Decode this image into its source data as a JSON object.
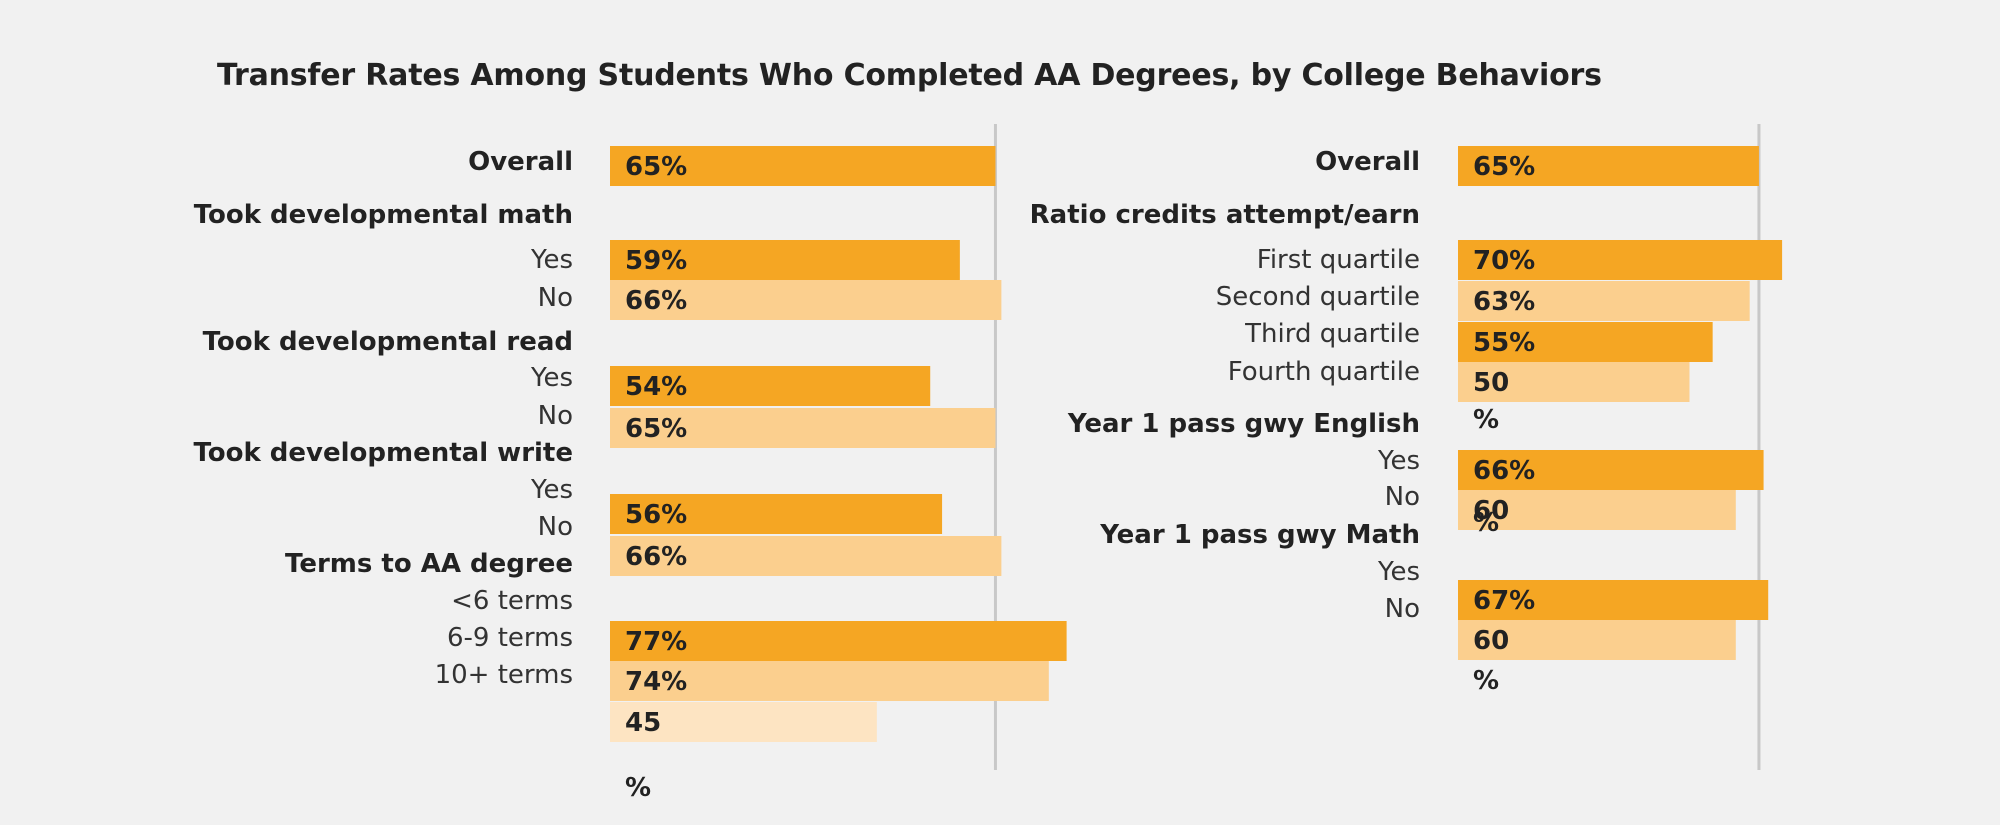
{
  "title": "Transfer Rates Among Students Who Completed AA Degrees, by College Behaviors",
  "colors": {
    "dark": "#f5a623",
    "medium": "#fbcf8e",
    "light": "#fde4c2",
    "reference_line": "#c8c8c8",
    "background": "#f1f1f1"
  },
  "chart_data": [
    {
      "type": "bar",
      "orientation": "horizontal",
      "reference_value": 65,
      "labels": [
        {
          "text": "Overall",
          "style": "group"
        },
        {
          "text": "Took developmental math",
          "style": "group"
        },
        {
          "text": "Yes",
          "style": "item"
        },
        {
          "text": "No",
          "style": "item"
        },
        {
          "text": "Took developmental read",
          "style": "group"
        },
        {
          "text": "Yes",
          "style": "item"
        },
        {
          "text": "No",
          "style": "item"
        },
        {
          "text": "Took developmental write",
          "style": "group"
        },
        {
          "text": "Yes",
          "style": "item"
        },
        {
          "text": "No",
          "style": "item"
        },
        {
          "text": "Terms to AA degree",
          "style": "group"
        },
        {
          "text": "<6 terms",
          "style": "item"
        },
        {
          "text": "6-9 terms",
          "style": "item"
        },
        {
          "text": "10+ terms",
          "style": "item"
        }
      ],
      "bars": [
        {
          "value": 65,
          "label": "65%",
          "shade": "dark"
        },
        {
          "value": 59,
          "label": "59%",
          "shade": "dark"
        },
        {
          "value": 66,
          "label": "66%",
          "shade": "medium"
        },
        {
          "value": 54,
          "label": "54%",
          "shade": "dark"
        },
        {
          "value": 65,
          "label": "65%",
          "shade": "medium"
        },
        {
          "value": 56,
          "label": "56%",
          "shade": "dark"
        },
        {
          "value": 66,
          "label": "66%",
          "shade": "medium"
        },
        {
          "value": 77,
          "label": "77%",
          "shade": "dark"
        },
        {
          "value": 74,
          "label": "74%",
          "shade": "medium"
        },
        {
          "value": 45,
          "label": "45",
          "shade": "light"
        }
      ],
      "orphan_labels": [
        "%"
      ]
    },
    {
      "type": "bar",
      "orientation": "horizontal",
      "reference_value": 65,
      "labels": [
        {
          "text": "Overall",
          "style": "group"
        },
        {
          "text": "Ratio credits attempt/earn",
          "style": "group"
        },
        {
          "text": "First quartile",
          "style": "item"
        },
        {
          "text": "Second quartile",
          "style": "item"
        },
        {
          "text": "Third quartile",
          "style": "item"
        },
        {
          "text": "Fourth quartile",
          "style": "item"
        },
        {
          "text": "Year 1 pass gwy English",
          "style": "group"
        },
        {
          "text": "Yes",
          "style": "item"
        },
        {
          "text": "No",
          "style": "item"
        },
        {
          "text": "Year 1 pass gwy Math",
          "style": "group"
        },
        {
          "text": "Yes",
          "style": "item"
        },
        {
          "text": "No",
          "style": "item"
        }
      ],
      "bars": [
        {
          "value": 65,
          "label": "65%",
          "shade": "dark"
        },
        {
          "value": 70,
          "label": "70%",
          "shade": "dark"
        },
        {
          "value": 63,
          "label": "63%",
          "shade": "medium"
        },
        {
          "value": 55,
          "label": "55%",
          "shade": "dark"
        },
        {
          "value": 50,
          "label": "50",
          "shade": "medium"
        },
        {
          "value": 66,
          "label": "66%",
          "shade": "dark"
        },
        {
          "value": 60,
          "label": "60",
          "shade": "medium"
        },
        {
          "value": 67,
          "label": "67%",
          "shade": "dark"
        },
        {
          "value": 60,
          "label": "60",
          "shade": "medium"
        }
      ],
      "orphan_labels": [
        "%",
        "%",
        "%"
      ]
    }
  ]
}
